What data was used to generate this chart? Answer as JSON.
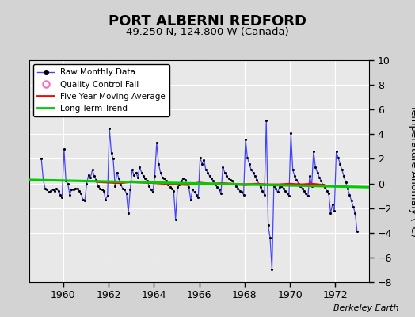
{
  "title": "PORT ALBERNI REDFORD",
  "subtitle": "49.250 N, 124.800 W (Canada)",
  "ylabel": "Temperature Anomaly (°C)",
  "credit": "Berkeley Earth",
  "xlim": [
    1958.5,
    1973.5
  ],
  "ylim": [
    -8,
    10
  ],
  "yticks": [
    -8,
    -6,
    -4,
    -2,
    0,
    2,
    4,
    6,
    8,
    10
  ],
  "xticks": [
    1960,
    1962,
    1964,
    1966,
    1968,
    1970,
    1972
  ],
  "plot_bg": "#e8e8e8",
  "fig_bg": "#d3d3d3",
  "raw_color": "#4444ff",
  "moving_avg_color": "#ff0000",
  "trend_color": "#00cc00",
  "qc_color": "#ff69b4",
  "raw_data_t": [
    1959.042,
    1959.125,
    1959.208,
    1959.292,
    1959.375,
    1959.458,
    1959.542,
    1959.625,
    1959.708,
    1959.792,
    1959.875,
    1959.958,
    1960.042,
    1960.125,
    1960.208,
    1960.292,
    1960.375,
    1960.458,
    1960.542,
    1960.625,
    1960.708,
    1960.792,
    1960.875,
    1960.958,
    1961.042,
    1961.125,
    1961.208,
    1961.292,
    1961.375,
    1961.458,
    1961.542,
    1961.625,
    1961.708,
    1961.792,
    1961.875,
    1961.958,
    1962.042,
    1962.125,
    1962.208,
    1962.292,
    1962.375,
    1962.458,
    1962.542,
    1962.625,
    1962.708,
    1962.792,
    1962.875,
    1962.958,
    1963.042,
    1963.125,
    1963.208,
    1963.292,
    1963.375,
    1963.458,
    1963.542,
    1963.625,
    1963.708,
    1963.792,
    1963.875,
    1963.958,
    1964.042,
    1964.125,
    1964.208,
    1964.292,
    1964.375,
    1964.458,
    1964.542,
    1964.625,
    1964.708,
    1964.792,
    1964.875,
    1964.958,
    1965.042,
    1965.125,
    1965.208,
    1965.292,
    1965.375,
    1965.458,
    1965.542,
    1965.625,
    1965.708,
    1965.792,
    1965.875,
    1965.958,
    1966.042,
    1966.125,
    1966.208,
    1966.292,
    1966.375,
    1966.458,
    1966.542,
    1966.625,
    1966.708,
    1966.792,
    1966.875,
    1966.958,
    1967.042,
    1967.125,
    1967.208,
    1967.292,
    1967.375,
    1967.458,
    1967.542,
    1967.625,
    1967.708,
    1967.792,
    1967.875,
    1967.958,
    1968.042,
    1968.125,
    1968.208,
    1968.292,
    1968.375,
    1968.458,
    1968.542,
    1968.625,
    1968.708,
    1968.792,
    1968.875,
    1968.958,
    1969.042,
    1969.125,
    1969.208,
    1969.292,
    1969.375,
    1969.458,
    1969.542,
    1969.625,
    1969.708,
    1969.792,
    1969.875,
    1969.958,
    1970.042,
    1970.125,
    1970.208,
    1970.292,
    1970.375,
    1970.458,
    1970.542,
    1970.625,
    1970.708,
    1970.792,
    1970.875,
    1970.958,
    1971.042,
    1971.125,
    1971.208,
    1971.292,
    1971.375,
    1971.458,
    1971.542,
    1971.625,
    1971.708,
    1971.792,
    1971.875,
    1971.958,
    1972.042,
    1972.125,
    1972.208,
    1972.292,
    1972.375,
    1972.458,
    1972.542,
    1972.625,
    1972.708,
    1972.792,
    1972.875,
    1972.958
  ],
  "raw_data_v": [
    2.0,
    0.3,
    -0.4,
    -0.5,
    -0.7,
    -0.6,
    -0.5,
    -0.6,
    -0.4,
    -0.6,
    -0.9,
    -1.1,
    2.8,
    0.2,
    0.0,
    -0.9,
    -0.5,
    -0.5,
    -0.4,
    -0.4,
    -0.6,
    -0.8,
    -1.3,
    -1.4,
    0.0,
    0.7,
    0.5,
    1.1,
    0.6,
    0.3,
    -0.2,
    -0.4,
    -0.5,
    -0.6,
    -1.3,
    -1.0,
    4.5,
    2.5,
    2.0,
    -0.2,
    0.9,
    0.4,
    -0.1,
    -0.4,
    -0.5,
    -0.8,
    -2.4,
    -0.5,
    1.1,
    0.7,
    0.9,
    0.5,
    1.3,
    0.9,
    0.6,
    0.4,
    0.2,
    -0.2,
    -0.5,
    -0.7,
    0.6,
    3.3,
    1.6,
    0.9,
    0.5,
    0.4,
    0.2,
    -0.1,
    -0.3,
    -0.4,
    -0.6,
    -2.9,
    -0.3,
    -0.1,
    0.2,
    0.4,
    0.3,
    0.0,
    -0.3,
    -1.3,
    -0.5,
    -0.7,
    -0.9,
    -1.1,
    2.1,
    1.6,
    1.9,
    1.1,
    0.9,
    0.6,
    0.4,
    0.2,
    -0.1,
    -0.3,
    -0.5,
    -0.8,
    1.3,
    0.9,
    0.6,
    0.4,
    0.3,
    0.2,
    0.0,
    -0.2,
    -0.4,
    -0.6,
    -0.7,
    -0.9,
    3.6,
    2.1,
    1.6,
    1.1,
    0.9,
    0.6,
    0.3,
    0.0,
    -0.3,
    -0.6,
    -0.9,
    5.1,
    -3.4,
    -4.4,
    -7.0,
    -0.2,
    -0.4,
    -0.7,
    -0.3,
    -0.2,
    -0.4,
    -0.6,
    -0.8,
    -1.0,
    4.1,
    1.1,
    0.6,
    0.3,
    0.0,
    -0.2,
    -0.4,
    -0.6,
    -0.8,
    -1.0,
    0.6,
    -0.2,
    2.6,
    1.3,
    0.9,
    0.5,
    0.2,
    -0.1,
    -0.3,
    -0.6,
    -0.8,
    -2.4,
    -1.7,
    -2.2,
    2.6,
    2.1,
    1.6,
    1.1,
    0.6,
    0.1,
    -0.4,
    -0.9,
    -1.4,
    -1.9,
    -2.4,
    -3.9
  ],
  "moving_avg_t": [
    1961.5,
    1962.0,
    1962.5,
    1963.0,
    1963.5,
    1964.0,
    1964.5,
    1965.0,
    1965.5,
    1966.0,
    1966.5,
    1967.0,
    1967.5,
    1968.0,
    1968.5,
    1969.0,
    1969.5,
    1970.0,
    1970.5,
    1971.0,
    1971.5
  ],
  "moving_avg_v": [
    0.15,
    0.1,
    0.05,
    0.15,
    0.1,
    0.05,
    0.0,
    -0.05,
    -0.1,
    0.05,
    -0.05,
    -0.0,
    -0.05,
    -0.1,
    -0.05,
    -0.1,
    -0.1,
    -0.05,
    -0.1,
    -0.05,
    -0.15
  ],
  "trend_t": [
    1958.5,
    1973.5
  ],
  "trend_v": [
    0.3,
    -0.3
  ]
}
